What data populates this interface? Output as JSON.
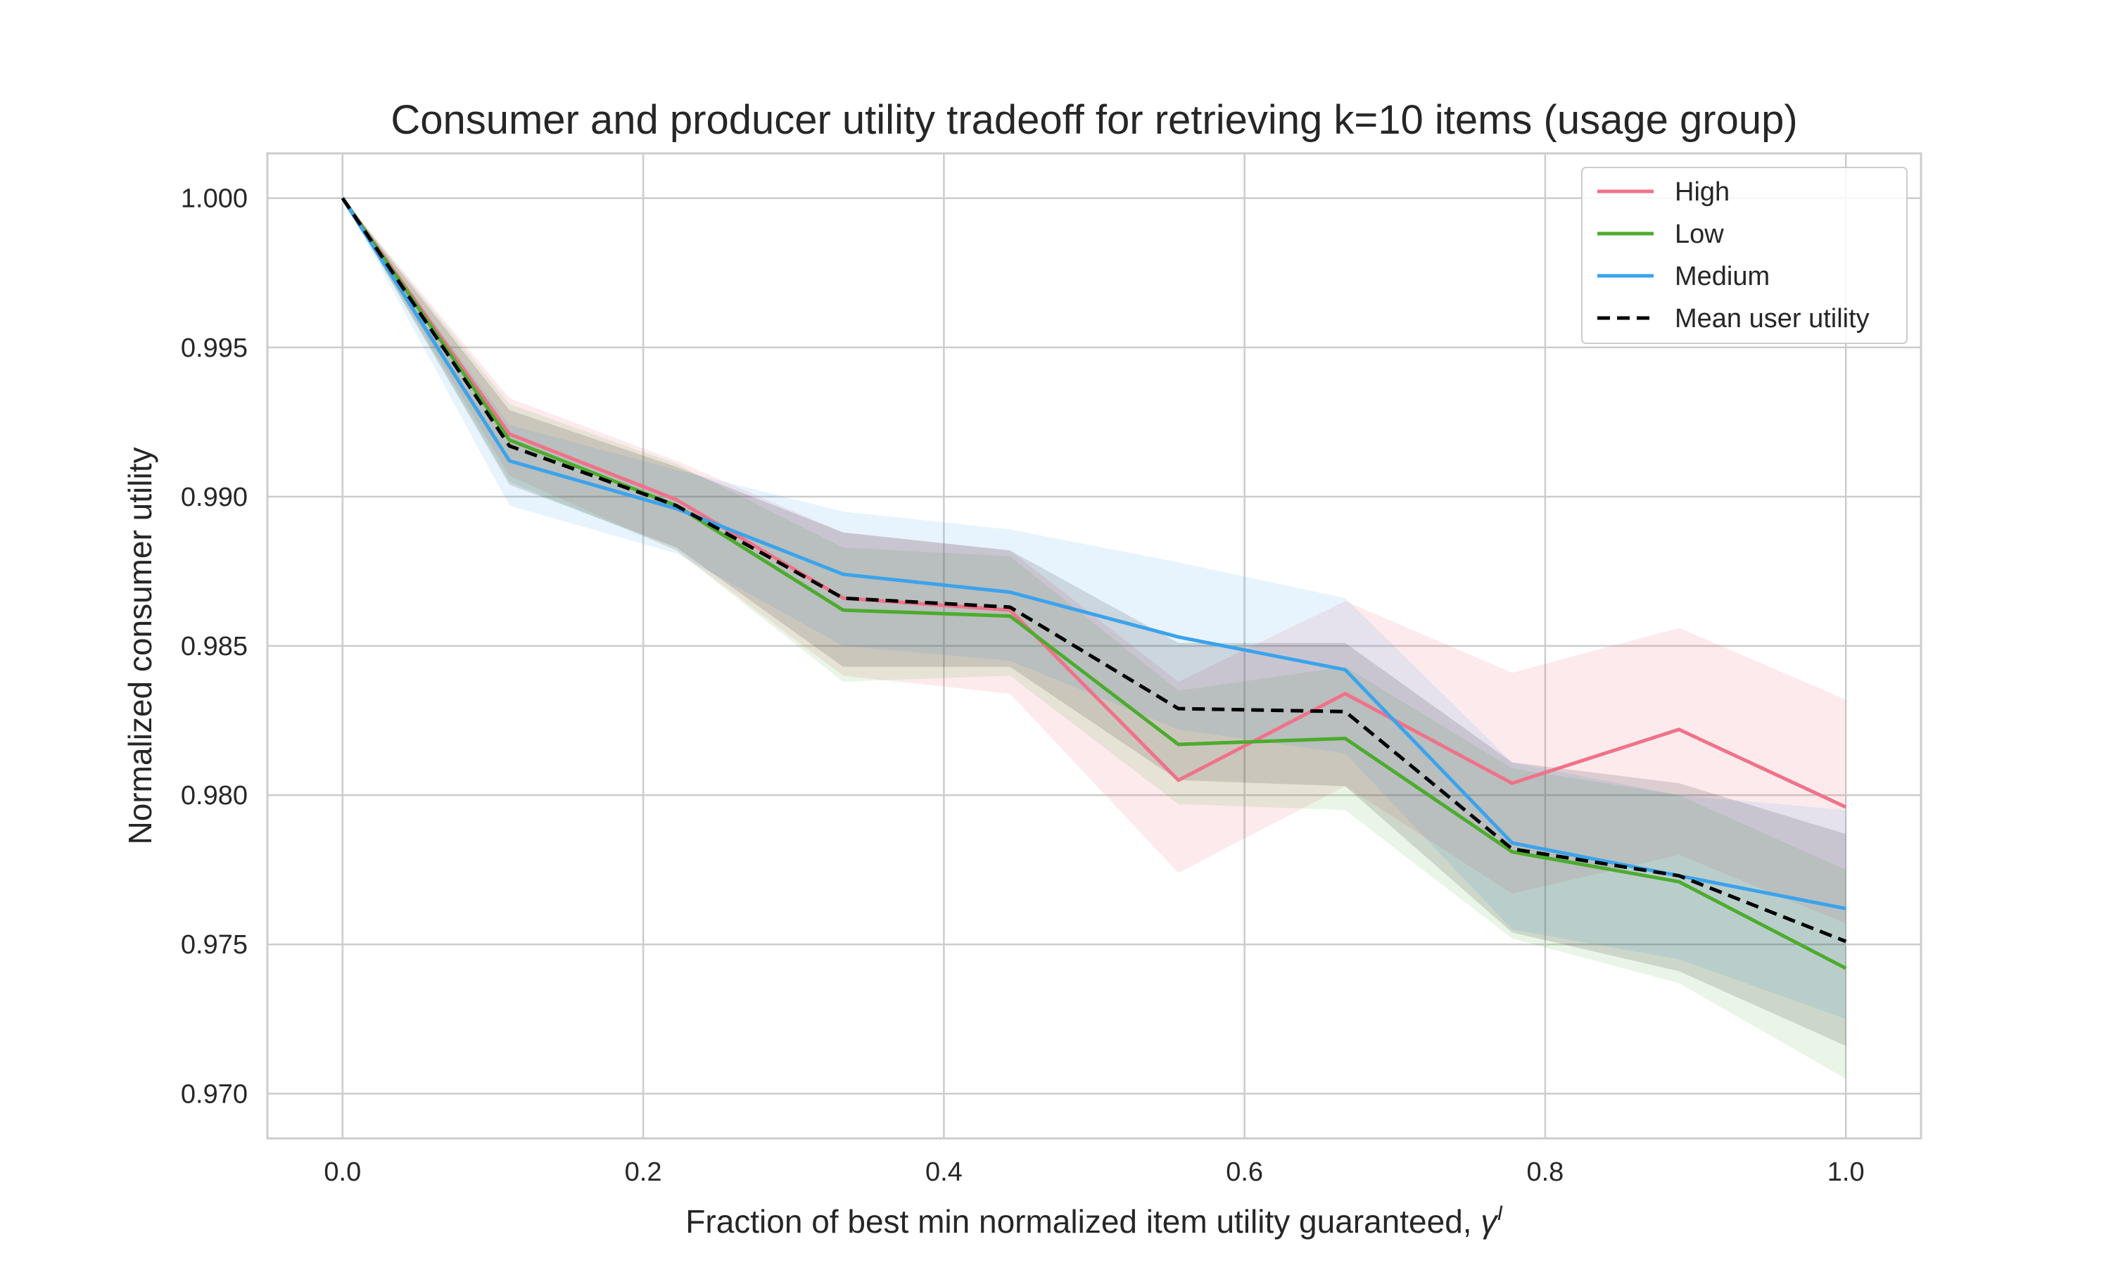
{
  "chart_data": {
    "type": "line",
    "title": "Consumer and producer utility tradeoff for retrieving k=10 items (usage  group)",
    "xlabel": "Fraction of best min normalized item utility guaranteed, ",
    "xlabel_symbol": "γ",
    "xlabel_superscript": "I",
    "ylabel": "Normalized consumer utility",
    "xlim": [
      -0.05,
      1.05
    ],
    "ylim": [
      0.9685,
      1.0015
    ],
    "x_ticks": [
      0.0,
      0.2,
      0.4,
      0.6,
      0.8,
      1.0
    ],
    "x_tick_labels": [
      "0.0",
      "0.2",
      "0.4",
      "0.6",
      "0.8",
      "1.0"
    ],
    "y_ticks": [
      0.97,
      0.975,
      0.98,
      0.985,
      0.99,
      0.995,
      1.0
    ],
    "y_tick_labels": [
      "0.970",
      "0.975",
      "0.980",
      "0.985",
      "0.990",
      "0.995",
      "1.000"
    ],
    "grid": true,
    "legend_position": "top-right",
    "x": [
      0.0,
      0.111,
      0.222,
      0.333,
      0.444,
      0.556,
      0.667,
      0.778,
      0.889,
      1.0
    ],
    "series": [
      {
        "name": "High",
        "color": "#f07289",
        "style": "solid",
        "values": [
          1.0,
          0.9921,
          0.9899,
          0.9866,
          0.9862,
          0.9805,
          0.9834,
          0.9804,
          0.9822,
          0.9796
        ],
        "lower": [
          1.0,
          0.9907,
          0.9882,
          0.984,
          0.9834,
          0.9774,
          0.9803,
          0.9767,
          0.978,
          0.9757
        ],
        "upper": [
          1.0,
          0.9933,
          0.9912,
          0.9888,
          0.9882,
          0.9838,
          0.9865,
          0.9841,
          0.9856,
          0.9832
        ]
      },
      {
        "name": "Low",
        "color": "#4dab2e",
        "style": "solid",
        "values": [
          1.0,
          0.9919,
          0.9897,
          0.9862,
          0.986,
          0.9817,
          0.9819,
          0.9781,
          0.9771,
          0.9742
        ],
        "lower": [
          1.0,
          0.9905,
          0.9882,
          0.9838,
          0.984,
          0.9797,
          0.9795,
          0.9752,
          0.9737,
          0.9705
        ],
        "upper": [
          1.0,
          0.9931,
          0.9911,
          0.9883,
          0.988,
          0.9835,
          0.9843,
          0.9809,
          0.98,
          0.9775
        ]
      },
      {
        "name": "Medium",
        "color": "#3ba3ec",
        "style": "solid",
        "values": [
          1.0,
          0.9912,
          0.9896,
          0.9874,
          0.9868,
          0.9853,
          0.9842,
          0.9784,
          0.9773,
          0.9762
        ],
        "lower": [
          1.0,
          0.9897,
          0.9881,
          0.985,
          0.9845,
          0.9822,
          0.9814,
          0.9755,
          0.9745,
          0.9725
        ],
        "upper": [
          1.0,
          0.9924,
          0.9909,
          0.9895,
          0.9889,
          0.9878,
          0.9866,
          0.9811,
          0.98,
          0.9795
        ]
      },
      {
        "name": "Mean user utility",
        "color": "#000000",
        "style": "dashed",
        "values": [
          1.0,
          0.9917,
          0.9897,
          0.9866,
          0.9863,
          0.9829,
          0.9828,
          0.9782,
          0.9773,
          0.9751
        ],
        "lower": [
          1.0,
          0.9904,
          0.9883,
          0.9843,
          0.9843,
          0.9805,
          0.9803,
          0.9754,
          0.9741,
          0.9716
        ],
        "upper": [
          1.0,
          0.9929,
          0.991,
          0.9888,
          0.9882,
          0.9851,
          0.9851,
          0.9811,
          0.9804,
          0.9787
        ]
      }
    ]
  }
}
